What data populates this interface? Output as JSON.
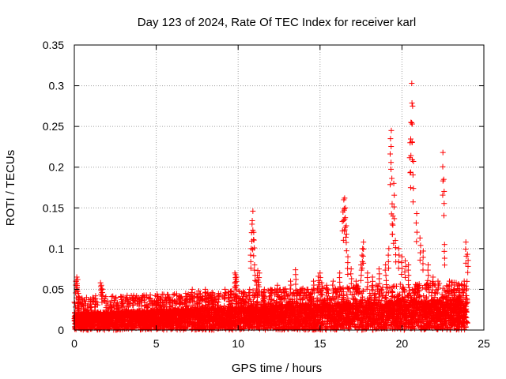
{
  "chart_data": {
    "type": "scatter",
    "title": "Day 123 of 2024, Rate Of TEC Index for receiver karl",
    "xlabel": "GPS time / hours",
    "ylabel": "ROTI / TECUs",
    "xlim": [
      0,
      25
    ],
    "ylim": [
      0,
      0.35
    ],
    "x_ticks": [
      0,
      5,
      10,
      15,
      20,
      25
    ],
    "x_tick_labels": [
      "0",
      "5",
      "10",
      "15",
      "20",
      "25"
    ],
    "y_ticks": [
      0,
      0.05,
      0.1,
      0.15,
      0.2,
      0.25,
      0.3,
      0.35
    ],
    "y_tick_labels": [
      "0",
      "0.05",
      "0.1",
      "0.15",
      "0.2",
      "0.25",
      "0.3",
      "0.35"
    ],
    "grid": true,
    "marker": "+",
    "color": "#ff0000",
    "series": [
      {
        "name": "ROTI",
        "x": [
          0.1,
          0.15,
          0.2,
          0.25,
          0.3,
          0.5,
          0.8,
          1.0,
          1.3,
          1.6,
          1.65,
          1.7,
          2.0,
          2.3,
          2.6,
          3.0,
          3.3,
          3.6,
          3.8,
          4.0,
          4.3,
          4.6,
          5.0,
          5.3,
          5.6,
          6.0,
          6.4,
          6.8,
          7.2,
          7.6,
          8.0,
          8.4,
          8.8,
          9.2,
          9.6,
          9.8,
          9.85,
          9.9,
          10.3,
          10.7,
          10.8,
          10.85,
          10.9,
          10.95,
          11.0,
          11.1,
          11.2,
          11.3,
          11.6,
          12.0,
          12.4,
          12.8,
          13.2,
          13.5,
          13.8,
          14.2,
          14.6,
          14.9,
          15.0,
          15.1,
          15.4,
          15.8,
          16.2,
          16.4,
          16.45,
          16.5,
          16.55,
          16.6,
          16.7,
          16.9,
          17.2,
          17.5,
          17.6,
          17.65,
          17.9,
          18.2,
          18.6,
          19.0,
          19.2,
          19.3,
          19.35,
          19.4,
          19.45,
          19.5,
          19.6,
          19.8,
          20.0,
          20.2,
          20.4,
          20.5,
          20.55,
          20.6,
          20.65,
          20.7,
          20.9,
          21.1,
          21.3,
          21.6,
          21.9,
          22.2,
          22.5,
          22.55,
          22.6,
          22.9,
          23.2,
          23.5,
          23.8,
          23.9,
          24.0
        ],
        "y": [
          0.06,
          0.065,
          0.062,
          0.045,
          0.04,
          0.035,
          0.03,
          0.038,
          0.042,
          0.058,
          0.055,
          0.05,
          0.03,
          0.028,
          0.032,
          0.03,
          0.035,
          0.04,
          0.042,
          0.038,
          0.04,
          0.035,
          0.036,
          0.04,
          0.038,
          0.03,
          0.035,
          0.045,
          0.05,
          0.048,
          0.05,
          0.046,
          0.045,
          0.05,
          0.048,
          0.07,
          0.068,
          0.065,
          0.045,
          0.05,
          0.1,
          0.13,
          0.146,
          0.12,
          0.08,
          0.06,
          0.073,
          0.07,
          0.05,
          0.05,
          0.055,
          0.05,
          0.06,
          0.074,
          0.05,
          0.05,
          0.06,
          0.066,
          0.07,
          0.058,
          0.055,
          0.06,
          0.07,
          0.145,
          0.16,
          0.162,
          0.15,
          0.128,
          0.09,
          0.075,
          0.06,
          0.08,
          0.1,
          0.108,
          0.07,
          0.065,
          0.075,
          0.08,
          0.1,
          0.235,
          0.245,
          0.155,
          0.14,
          0.18,
          0.11,
          0.1,
          0.09,
          0.085,
          0.08,
          0.23,
          0.255,
          0.303,
          0.275,
          0.207,
          0.143,
          0.113,
          0.097,
          0.08,
          0.065,
          0.06,
          0.218,
          0.185,
          0.105,
          0.06,
          0.05,
          0.055,
          0.06,
          0.108,
          0.093
        ]
      }
    ],
    "noise_band": {
      "x_range": [
        0,
        24
      ],
      "y_range": [
        0,
        0.03
      ],
      "description": "dense cluster of low ROTI values"
    }
  }
}
